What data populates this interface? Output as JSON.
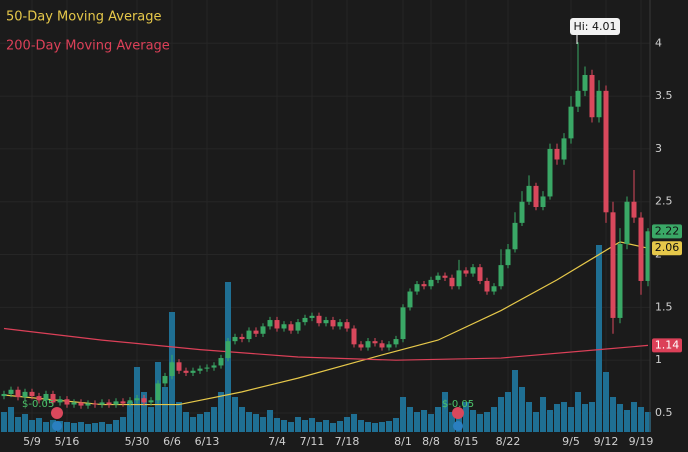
{
  "chart_data": {
    "type": "candlestick",
    "categories": [
      null,
      null,
      null,
      null,
      "5/9",
      null,
      null,
      null,
      null,
      "5/16",
      null,
      null,
      null,
      null,
      null,
      null,
      null,
      null,
      null,
      "5/30",
      null,
      null,
      null,
      null,
      "6/6",
      null,
      null,
      null,
      null,
      "6/13",
      null,
      null,
      null,
      null,
      null,
      null,
      null,
      null,
      null,
      "7/4",
      null,
      null,
      null,
      null,
      "7/11",
      null,
      null,
      null,
      null,
      "7/18",
      null,
      null,
      null,
      null,
      null,
      null,
      null,
      "8/1",
      null,
      null,
      null,
      "8/8",
      null,
      null,
      null,
      null,
      "8/15",
      null,
      null,
      null,
      null,
      null,
      "8/22",
      null,
      null,
      null,
      null,
      null,
      null,
      null,
      null,
      "9/5",
      null,
      null,
      null,
      null,
      "9/12",
      null,
      null,
      null,
      null,
      "9/19",
      null
    ],
    "open": [
      0.66,
      0.68,
      0.72,
      0.65,
      0.7,
      0.66,
      0.62,
      0.68,
      0.6,
      0.63,
      0.58,
      0.6,
      0.57,
      0.59,
      0.58,
      0.6,
      0.58,
      0.61,
      0.59,
      0.62,
      0.64,
      0.6,
      0.62,
      0.78,
      0.85,
      0.98,
      0.9,
      0.88,
      0.9,
      0.92,
      0.93,
      0.95,
      1.02,
      1.18,
      1.22,
      1.2,
      1.28,
      1.25,
      1.32,
      1.38,
      1.3,
      1.34,
      1.28,
      1.36,
      1.4,
      1.42,
      1.35,
      1.38,
      1.32,
      1.36,
      1.3,
      1.15,
      1.12,
      1.18,
      1.16,
      1.12,
      1.15,
      1.2,
      1.5,
      1.65,
      1.72,
      1.7,
      1.76,
      1.8,
      1.78,
      1.7,
      1.85,
      1.82,
      1.88,
      1.75,
      1.65,
      1.7,
      1.9,
      2.05,
      2.3,
      2.5,
      2.65,
      2.45,
      2.55,
      3.0,
      2.9,
      3.1,
      3.4,
      3.55,
      3.7,
      3.3,
      3.55,
      2.4,
      1.4,
      2.1,
      2.5,
      2.35,
      1.75
    ],
    "high": [
      0.71,
      0.75,
      0.75,
      0.73,
      0.73,
      0.69,
      0.71,
      0.71,
      0.66,
      0.66,
      0.63,
      0.63,
      0.62,
      0.62,
      0.63,
      0.63,
      0.64,
      0.64,
      0.65,
      0.67,
      0.67,
      0.65,
      0.81,
      0.88,
      1.05,
      1.01,
      0.93,
      0.93,
      0.95,
      0.96,
      0.98,
      1.05,
      1.21,
      1.25,
      1.25,
      1.31,
      1.31,
      1.35,
      1.41,
      1.41,
      1.37,
      1.37,
      1.39,
      1.43,
      1.45,
      1.45,
      1.41,
      1.41,
      1.39,
      1.39,
      1.33,
      1.18,
      1.21,
      1.21,
      1.19,
      1.18,
      1.23,
      1.53,
      1.68,
      1.75,
      1.75,
      1.79,
      1.83,
      1.83,
      1.81,
      1.95,
      1.88,
      1.91,
      1.91,
      1.78,
      1.73,
      2.05,
      2.1,
      2.4,
      2.6,
      2.75,
      2.68,
      2.6,
      3.05,
      3.05,
      3.15,
      3.5,
      4.01,
      3.78,
      3.75,
      3.65,
      3.6,
      2.5,
      2.25,
      2.55,
      2.8,
      2.4,
      2.25
    ],
    "low": [
      0.63,
      0.65,
      0.62,
      0.62,
      0.63,
      0.59,
      0.59,
      0.57,
      0.57,
      0.55,
      0.55,
      0.54,
      0.54,
      0.55,
      0.55,
      0.55,
      0.55,
      0.56,
      0.56,
      0.59,
      0.57,
      0.57,
      0.59,
      0.75,
      0.82,
      0.87,
      0.85,
      0.85,
      0.87,
      0.89,
      0.9,
      0.92,
      0.99,
      1.15,
      1.17,
      1.17,
      1.22,
      1.22,
      1.29,
      1.27,
      1.27,
      1.25,
      1.25,
      1.33,
      1.37,
      1.32,
      1.32,
      1.29,
      1.29,
      1.27,
      1.12,
      1.09,
      1.09,
      1.13,
      1.09,
      1.09,
      1.12,
      1.17,
      1.47,
      1.62,
      1.67,
      1.67,
      1.73,
      1.75,
      1.67,
      1.67,
      1.79,
      1.79,
      1.72,
      1.62,
      1.62,
      1.67,
      1.87,
      2.02,
      2.27,
      2.47,
      2.42,
      2.42,
      2.52,
      2.85,
      2.85,
      3.05,
      3.35,
      3.5,
      3.25,
      3.25,
      2.3,
      1.25,
      1.35,
      2.05,
      2.3,
      1.62,
      1.7
    ],
    "close": [
      0.68,
      0.72,
      0.65,
      0.7,
      0.66,
      0.62,
      0.68,
      0.6,
      0.63,
      0.58,
      0.6,
      0.57,
      0.59,
      0.58,
      0.6,
      0.58,
      0.61,
      0.59,
      0.62,
      0.64,
      0.6,
      0.62,
      0.78,
      0.85,
      0.98,
      0.9,
      0.88,
      0.9,
      0.92,
      0.93,
      0.95,
      1.02,
      1.18,
      1.22,
      1.2,
      1.28,
      1.25,
      1.32,
      1.38,
      1.3,
      1.34,
      1.28,
      1.36,
      1.4,
      1.42,
      1.35,
      1.38,
      1.32,
      1.36,
      1.3,
      1.15,
      1.12,
      1.18,
      1.16,
      1.12,
      1.15,
      1.2,
      1.5,
      1.65,
      1.72,
      1.7,
      1.76,
      1.8,
      1.78,
      1.7,
      1.85,
      1.82,
      1.88,
      1.75,
      1.65,
      1.7,
      1.9,
      2.05,
      2.3,
      2.5,
      2.65,
      2.45,
      2.55,
      3.0,
      2.9,
      3.1,
      3.4,
      3.55,
      3.7,
      3.3,
      3.55,
      2.4,
      1.4,
      2.1,
      2.5,
      2.35,
      1.75,
      2.22
    ],
    "up_color": "#3aa866",
    "down_color": "#d9485c",
    "volume": [
      20,
      25,
      15,
      18,
      12,
      14,
      10,
      12,
      11,
      10,
      9,
      10,
      8,
      9,
      10,
      8,
      12,
      15,
      30,
      65,
      40,
      25,
      70,
      45,
      120,
      30,
      20,
      15,
      18,
      20,
      25,
      40,
      150,
      35,
      25,
      20,
      18,
      15,
      22,
      14,
      12,
      10,
      15,
      12,
      14,
      10,
      12,
      9,
      11,
      15,
      18,
      12,
      10,
      9,
      10,
      11,
      14,
      35,
      25,
      20,
      22,
      18,
      25,
      40,
      20,
      15,
      30,
      22,
      18,
      20,
      25,
      35,
      40,
      62,
      45,
      30,
      20,
      35,
      22,
      28,
      30,
      25,
      40,
      28,
      30,
      187,
      60,
      35,
      28,
      22,
      30,
      25,
      20
    ],
    "volume_color": "#1f6f93",
    "series": [
      {
        "name": "50-Day Moving Average",
        "color": "#e6c84a",
        "x": [
          0,
          14,
          25,
          34,
          42,
          54,
          62,
          71,
          79,
          85,
          88,
          92
        ],
        "values": [
          0.67,
          0.58,
          0.58,
          0.7,
          0.83,
          1.05,
          1.19,
          1.47,
          1.76,
          2.0,
          2.12,
          2.06
        ]
      },
      {
        "name": "200-Day Moving Average",
        "color": "#dc4058",
        "x": [
          0,
          14,
          28,
          42,
          56,
          71,
          85,
          92
        ],
        "values": [
          1.3,
          1.19,
          1.1,
          1.03,
          1.0,
          1.02,
          1.1,
          1.14
        ]
      }
    ],
    "ylim": [
      0.32,
      4.41
    ],
    "yticks": [
      0.5,
      1,
      1.5,
      2,
      2.5,
      3,
      3.5,
      4
    ],
    "grid": true,
    "annotations": [
      "Hi: 4.01",
      "$-0.05",
      "$-0.05"
    ]
  }
}
